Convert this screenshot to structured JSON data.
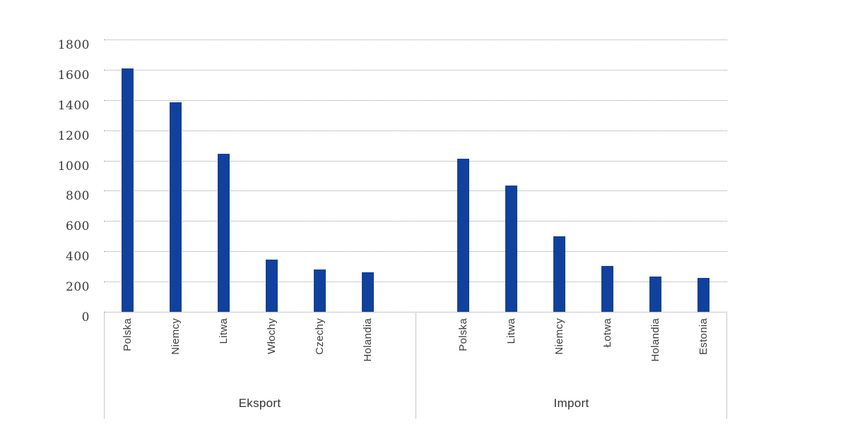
{
  "chart_data": {
    "type": "bar",
    "title": "",
    "xlabel": "",
    "ylabel": "",
    "ylim": [
      0,
      1800
    ],
    "ytick_step": 200,
    "yticks": [
      1800,
      1600,
      1400,
      1200,
      1000,
      800,
      600,
      400,
      200,
      0
    ],
    "grid": "horizontal-dotted",
    "legend": "none",
    "bar_color": "#10419d",
    "gridline_color": "#9a9a9a",
    "groups": [
      {
        "label": "Eksport",
        "categories": [
          "Polska",
          "Niemcy",
          "Litwa",
          "Włochy",
          "Czechy",
          "Holandia"
        ],
        "values": [
          1610,
          1385,
          1045,
          345,
          280,
          260
        ]
      },
      {
        "label": "Import",
        "categories": [
          "Polska",
          "Litwa",
          "Niemcy",
          "Łotwa",
          "Holandia",
          "Estonia"
        ],
        "values": [
          1010,
          835,
          500,
          305,
          235,
          225
        ]
      }
    ]
  }
}
